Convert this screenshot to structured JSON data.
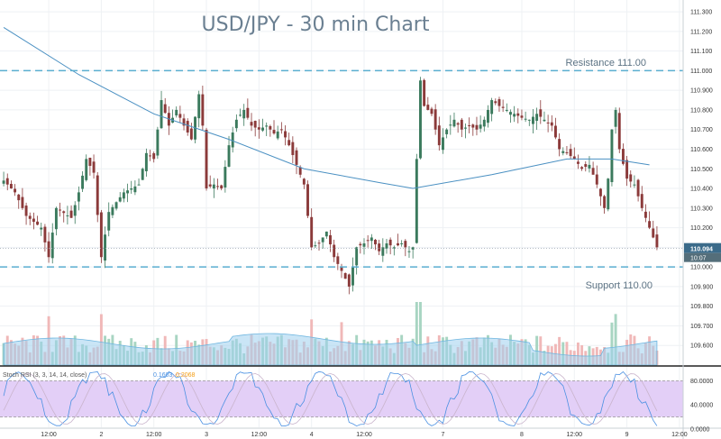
{
  "chart_data": {
    "type": "candlestick",
    "title": "USD/JPY - 30 min Chart",
    "ylim": [
      109.5,
      111.36
    ],
    "y_ticks": [
      "111.300",
      "111.200",
      "111.100",
      "111.000",
      "110.900",
      "110.800",
      "110.700",
      "110.600",
      "110.500",
      "110.400",
      "110.300",
      "110.200",
      "110.100",
      "110.000",
      "109.900",
      "109.800",
      "109.700",
      "109.600"
    ],
    "y_tick_values": [
      111.3,
      111.2,
      111.1,
      111.0,
      110.9,
      110.8,
      110.7,
      110.6,
      110.5,
      110.4,
      110.3,
      110.2,
      110.1,
      110.0,
      109.9,
      109.8,
      109.7,
      109.6
    ],
    "x_ticks": [
      "12:00",
      "2",
      "12:00",
      "3",
      "12:00",
      "4",
      "12:00",
      "7",
      "8",
      "12:00",
      "9",
      "12:00"
    ],
    "x_tick_index": [
      12,
      26,
      40,
      54,
      68,
      82,
      96,
      117,
      138,
      152,
      166,
      180
    ],
    "bar_count": 181,
    "price_tag": "110.094",
    "countdown_tag": "10:07",
    "last_price": 110.094,
    "resistance": {
      "label": "Resistance 111.00",
      "value": 111.0
    },
    "support": {
      "label": "Support 110.00",
      "value": 110.0
    },
    "close_path": [
      [
        0,
        110.44
      ],
      [
        3,
        110.38
      ],
      [
        6,
        110.26
      ],
      [
        10,
        110.2
      ],
      [
        12,
        110.05
      ],
      [
        14,
        110.3
      ],
      [
        18,
        110.25
      ],
      [
        20,
        110.38
      ],
      [
        22,
        110.55
      ],
      [
        24,
        110.48
      ],
      [
        26,
        110.05
      ],
      [
        28,
        110.28
      ],
      [
        32,
        110.38
      ],
      [
        36,
        110.42
      ],
      [
        38,
        110.58
      ],
      [
        40,
        110.55
      ],
      [
        42,
        110.85
      ],
      [
        44,
        110.72
      ],
      [
        46,
        110.8
      ],
      [
        48,
        110.72
      ],
      [
        50,
        110.65
      ],
      [
        52,
        110.88
      ],
      [
        53,
        110.72
      ],
      [
        54,
        110.4
      ],
      [
        56,
        110.42
      ],
      [
        58,
        110.4
      ],
      [
        60,
        110.62
      ],
      [
        62,
        110.75
      ],
      [
        64,
        110.8
      ],
      [
        66,
        110.72
      ],
      [
        68,
        110.7
      ],
      [
        70,
        110.72
      ],
      [
        72,
        110.68
      ],
      [
        74,
        110.7
      ],
      [
        76,
        110.62
      ],
      [
        78,
        110.52
      ],
      [
        80,
        110.42
      ],
      [
        82,
        110.1
      ],
      [
        84,
        110.12
      ],
      [
        86,
        110.18
      ],
      [
        88,
        110.05
      ],
      [
        90,
        109.98
      ],
      [
        92,
        109.9
      ],
      [
        94,
        110.1
      ],
      [
        96,
        110.12
      ],
      [
        98,
        110.15
      ],
      [
        100,
        110.08
      ],
      [
        102,
        110.12
      ],
      [
        104,
        110.1
      ],
      [
        106,
        110.12
      ],
      [
        108,
        110.08
      ],
      [
        109,
        110.1
      ],
      [
        110,
        110.55
      ],
      [
        111,
        110.95
      ],
      [
        112,
        110.82
      ],
      [
        114,
        110.78
      ],
      [
        116,
        110.62
      ],
      [
        118,
        110.7
      ],
      [
        120,
        110.75
      ],
      [
        122,
        110.7
      ],
      [
        124,
        110.72
      ],
      [
        126,
        110.7
      ],
      [
        128,
        110.75
      ],
      [
        130,
        110.85
      ],
      [
        132,
        110.82
      ],
      [
        134,
        110.8
      ],
      [
        136,
        110.78
      ],
      [
        138,
        110.76
      ],
      [
        140,
        110.75
      ],
      [
        142,
        110.78
      ],
      [
        144,
        110.75
      ],
      [
        146,
        110.72
      ],
      [
        148,
        110.6
      ],
      [
        150,
        110.58
      ],
      [
        152,
        110.55
      ],
      [
        154,
        110.5
      ],
      [
        156,
        110.52
      ],
      [
        158,
        110.42
      ],
      [
        160,
        110.3
      ],
      [
        161,
        110.45
      ],
      [
        162,
        110.7
      ],
      [
        163,
        110.8
      ],
      [
        164,
        110.6
      ],
      [
        166,
        110.45
      ],
      [
        168,
        110.42
      ],
      [
        170,
        110.3
      ],
      [
        172,
        110.2
      ],
      [
        174,
        110.1
      ]
    ],
    "candle_colors": {
      "up": "#3b7a5d",
      "down": "#8b3a3a"
    },
    "ma_path": [
      [
        0,
        111.22
      ],
      [
        20,
        110.98
      ],
      [
        40,
        110.78
      ],
      [
        60,
        110.65
      ],
      [
        80,
        110.5
      ],
      [
        100,
        110.43
      ],
      [
        109,
        110.4
      ],
      [
        130,
        110.47
      ],
      [
        150,
        110.55
      ],
      [
        162,
        110.55
      ],
      [
        172,
        110.52
      ]
    ],
    "ma_color": "#4a90c2",
    "volume_color_up": "#a8d5c2",
    "volume_color_down": "#f0b8b8",
    "volume_ma_color": "#9fd0ee",
    "indicator": {
      "label": "Stoch RSI (3, 3, 14, 14, close)",
      "value_k": "0.1603",
      "value_d": "0.2068",
      "k_color": "#4a90e2",
      "d_color": "#f39c12",
      "band_color": "#e3cff7",
      "y_ticks": [
        "80.0000",
        "40.0000",
        "0.0000"
      ],
      "y_tick_values": [
        80,
        40,
        0
      ]
    }
  }
}
